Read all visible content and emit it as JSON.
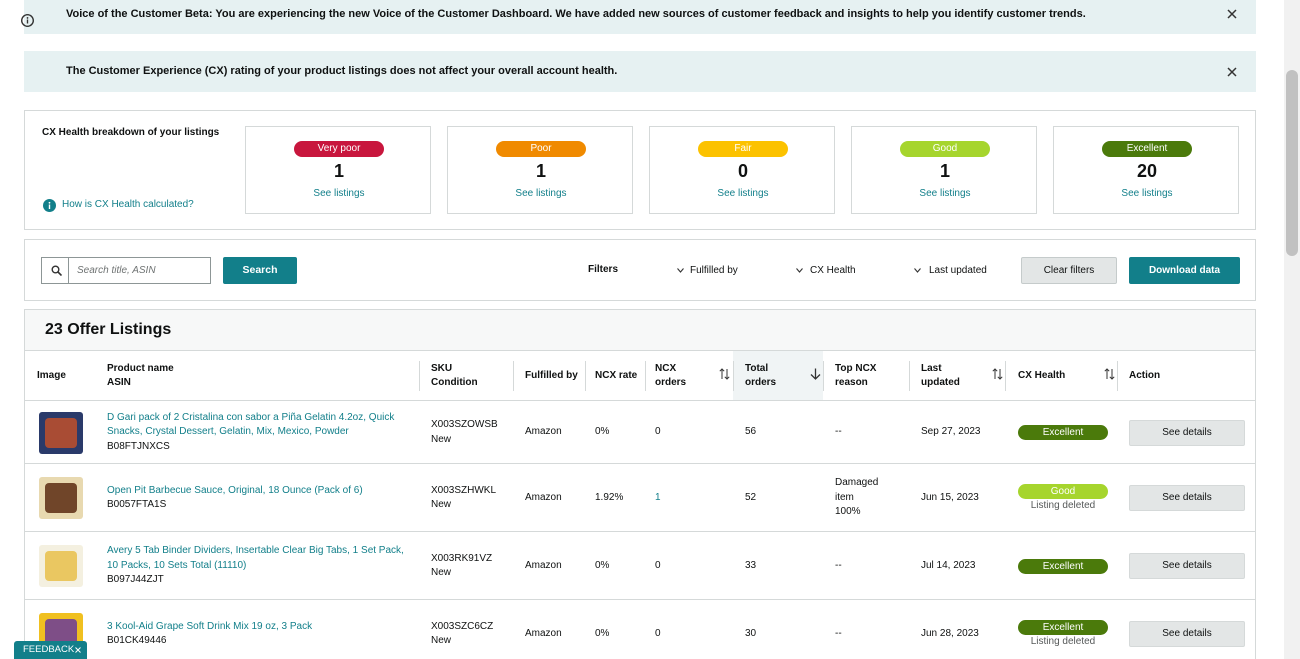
{
  "banners": [
    {
      "text": "Voice of the Customer Beta: You are experiencing the new Voice of the Customer Dashboard. We have added new sources of customer feedback and insights to help you identify customer trends."
    },
    {
      "text": "The Customer Experience (CX) rating of your product listings does not affect your overall account health."
    }
  ],
  "cx_health": {
    "title": "CX Health breakdown of your listings",
    "help_link": "How is CX Health calculated?",
    "cards": [
      {
        "label": "Very poor",
        "color": "#c8163d",
        "count": 1,
        "link": "See listings"
      },
      {
        "label": "Poor",
        "color": "#f08a00",
        "count": 1,
        "link": "See listings"
      },
      {
        "label": "Fair",
        "color": "#fcc200",
        "count": 0,
        "link": "See listings"
      },
      {
        "label": "Good",
        "color": "#a6d52d",
        "count": 1,
        "link": "See listings"
      },
      {
        "label": "Excellent",
        "color": "#4b7a0b",
        "count": 20,
        "link": "See listings"
      }
    ]
  },
  "toolbar": {
    "search_placeholder": "Search title, ASIN",
    "search_button": "Search",
    "filters_label": "Filters",
    "filters": [
      "Fulfilled by",
      "CX Health",
      "Last updated"
    ],
    "clear_button": "Clear filters",
    "download_button": "Download data"
  },
  "listings": {
    "title": "23 Offer Listings",
    "columns": [
      [
        "Image"
      ],
      [
        "Product name",
        "ASIN"
      ],
      [
        "SKU",
        "Condition"
      ],
      [
        "Fulfilled by"
      ],
      [
        "NCX rate"
      ],
      [
        "NCX",
        "orders"
      ],
      [
        "Total",
        "orders"
      ],
      [
        "Top NCX",
        "reason"
      ],
      [
        "Last",
        "updated"
      ],
      [
        "CX Health"
      ],
      [
        "Action"
      ]
    ],
    "rows": [
      {
        "product": "D Gari pack of 2 Cristalina con sabor a Piña Gelatin 4.2oz, Quick Snacks, Crystal Dessert, Gelatin, Mix, Mexico, Powder",
        "asin": "B08FTJNXCS",
        "sku": "X003SZOWSB",
        "condition": "New",
        "fulfilled_by": "Amazon",
        "ncx_rate": "0%",
        "ncx_orders": "0",
        "total_orders": "56",
        "top_ncx_reason": [
          "--"
        ],
        "last_updated": "Sep 27, 2023",
        "cx_health": "Excellent",
        "action": "See details"
      },
      {
        "product": "Open Pit Barbecue Sauce, Original, 18 Ounce (Pack of 6)",
        "asin": "B0057FTA1S",
        "sku": "X003SZHWKL",
        "condition": "New",
        "fulfilled_by": "Amazon",
        "ncx_rate": "1.92%",
        "ncx_orders": "1",
        "total_orders": "52",
        "top_ncx_reason": [
          "Damaged item",
          "100%"
        ],
        "last_updated": "Jun 15, 2023",
        "cx_health": "Good",
        "cx_note": "Listing deleted",
        "action": "See details"
      },
      {
        "product": "Avery 5 Tab Binder Dividers, Insertable Clear Big Tabs, 1 Set Pack, 10 Packs, 10 Sets Total (11110)",
        "asin": "B097J44ZJT",
        "sku": "X003RK91VZ",
        "condition": "New",
        "fulfilled_by": "Amazon",
        "ncx_rate": "0%",
        "ncx_orders": "0",
        "total_orders": "33",
        "top_ncx_reason": [
          "--"
        ],
        "last_updated": "Jul 14, 2023",
        "cx_health": "Excellent",
        "action": "See details"
      },
      {
        "product": "3 Kool-Aid Grape Soft Drink Mix 19 oz, 3 Pack",
        "asin": "B01CK49446",
        "sku": "X003SZC6CZ",
        "condition": "New",
        "fulfilled_by": "Amazon",
        "ncx_rate": "0%",
        "ncx_orders": "0",
        "total_orders": "30",
        "top_ncx_reason": [
          "--"
        ],
        "last_updated": "Jun 28, 2023",
        "cx_health": "Excellent",
        "cx_note": "Listing deleted",
        "action": "See details"
      }
    ]
  },
  "feedback": "FEEDBACK"
}
